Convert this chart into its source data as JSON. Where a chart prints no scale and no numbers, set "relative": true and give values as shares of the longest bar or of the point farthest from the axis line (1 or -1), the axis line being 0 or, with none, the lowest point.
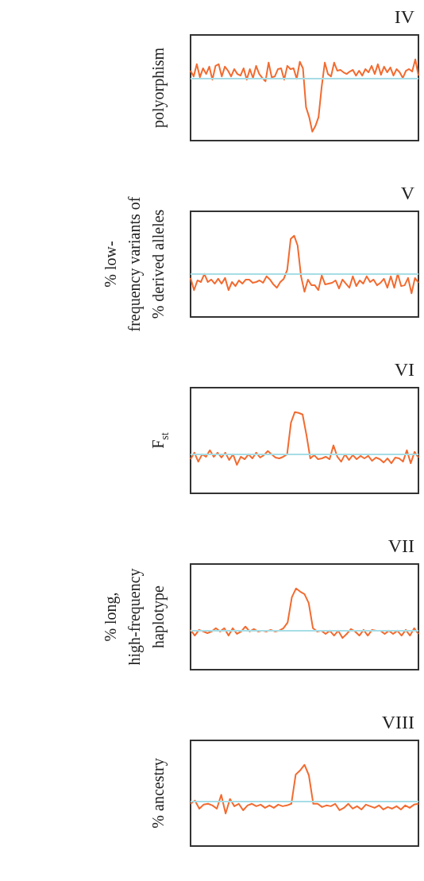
{
  "chart_data": [
    {
      "type": "line",
      "relative": true,
      "title": "IV",
      "ylabel": "polyorphism",
      "categories": [
        null,
        null,
        null,
        null,
        null,
        null,
        null,
        null,
        null,
        null,
        null,
        null,
        null,
        null,
        null,
        null,
        null,
        null,
        null,
        null,
        null,
        null,
        null,
        null,
        null,
        null,
        null,
        null,
        null,
        null,
        null,
        null,
        null,
        null,
        null,
        null,
        null,
        null,
        null,
        null,
        null,
        null,
        null,
        null,
        null,
        null,
        null,
        null,
        null,
        null,
        null,
        null,
        null,
        null,
        null,
        null,
        null,
        null,
        null,
        null,
        null,
        null,
        null,
        null,
        null,
        null,
        null,
        null,
        null,
        null,
        null,
        null,
        null,
        null
      ],
      "series": [
        {
          "color": "#f26b30",
          "values": [
            0.86,
            0.79,
            0.94,
            0.78,
            0.89,
            0.82,
            0.91,
            0.75,
            0.92,
            0.94,
            0.79,
            0.91,
            0.86,
            0.79,
            0.88,
            0.82,
            0.8,
            0.89,
            0.75,
            0.88,
            0.77,
            0.92,
            0.82,
            0.77,
            0.73,
            0.96,
            0.78,
            0.79,
            0.88,
            0.89,
            0.75,
            0.92,
            0.88,
            0.89,
            0.76,
            0.97,
            0.89,
            0.41,
            0.29,
            0.11,
            0.18,
            0.29,
            0.66,
            0.96,
            0.82,
            0.79,
            0.96,
            0.86,
            0.87,
            0.84,
            0.82,
            0.85,
            0.87,
            0.8,
            0.86,
            0.8,
            0.88,
            0.84,
            0.92,
            0.82,
            0.94,
            0.81,
            0.91,
            0.84,
            0.9,
            0.8,
            0.88,
            0.84,
            0.77,
            0.86,
            0.88,
            0.85,
            1.0,
            0.8
          ]
        }
      ],
      "ref_lines": [
        {
          "axis": "y",
          "value": 0.76,
          "color": "#a6dde6"
        }
      ]
    },
    {
      "type": "line",
      "relative": true,
      "title": "V",
      "ylabel": "% low-\nfrequency variants of\n% derived alleles",
      "categories": [
        null,
        null,
        null,
        null,
        null,
        null,
        null,
        null,
        null,
        null,
        null,
        null,
        null,
        null,
        null,
        null,
        null,
        null,
        null,
        null,
        null,
        null,
        null,
        null,
        null,
        null,
        null,
        null,
        null,
        null,
        null,
        null,
        null,
        null,
        null,
        null,
        null,
        null,
        null,
        null,
        null,
        null,
        null,
        null,
        null,
        null,
        null,
        null,
        null,
        null,
        null,
        null,
        null,
        null,
        null,
        null,
        null,
        null,
        null,
        null,
        null,
        null,
        null,
        null,
        null,
        null,
        null
      ],
      "series": [
        {
          "color": "#f26b30",
          "values": [
            0.48,
            0.33,
            0.45,
            0.43,
            0.53,
            0.43,
            0.46,
            0.41,
            0.47,
            0.41,
            0.48,
            0.33,
            0.43,
            0.38,
            0.45,
            0.41,
            0.46,
            0.46,
            0.42,
            0.43,
            0.45,
            0.42,
            0.5,
            0.46,
            0.4,
            0.36,
            0.43,
            0.47,
            0.58,
            0.96,
            1.0,
            0.88,
            0.5,
            0.31,
            0.46,
            0.39,
            0.39,
            0.33,
            0.51,
            0.4,
            0.41,
            0.42,
            0.45,
            0.35,
            0.46,
            0.41,
            0.36,
            0.5,
            0.38,
            0.45,
            0.41,
            0.5,
            0.43,
            0.46,
            0.39,
            0.42,
            0.47,
            0.36,
            0.5,
            0.36,
            0.53,
            0.38,
            0.39,
            0.48,
            0.29,
            0.48,
            0.42
          ]
        }
      ],
      "ref_lines": [
        {
          "axis": "y",
          "value": 0.53,
          "color": "#a6dde6"
        }
      ]
    },
    {
      "type": "line",
      "relative": true,
      "title": "VI",
      "ylabel": "F$_{st}$",
      "categories": [
        null,
        null,
        null,
        null,
        null,
        null,
        null,
        null,
        null,
        null,
        null,
        null,
        null,
        null,
        null,
        null,
        null,
        null,
        null,
        null,
        null,
        null,
        null,
        null,
        null,
        null,
        null,
        null,
        null,
        null,
        null,
        null,
        null,
        null,
        null,
        null,
        null,
        null,
        null,
        null,
        null,
        null,
        null,
        null,
        null,
        null,
        null,
        null,
        null,
        null,
        null,
        null,
        null,
        null,
        null,
        null,
        null,
        null,
        null,
        null
      ],
      "series": [
        {
          "color": "#f26b30",
          "values": [
            0.42,
            0.5,
            0.39,
            0.48,
            0.45,
            0.53,
            0.45,
            0.5,
            0.44,
            0.5,
            0.41,
            0.48,
            0.35,
            0.45,
            0.42,
            0.48,
            0.43,
            0.5,
            0.44,
            0.47,
            0.52,
            0.48,
            0.44,
            0.43,
            0.45,
            0.48,
            0.87,
            1.0,
            0.99,
            0.97,
            0.72,
            0.43,
            0.47,
            0.42,
            0.43,
            0.45,
            0.42,
            0.59,
            0.45,
            0.39,
            0.48,
            0.41,
            0.47,
            0.42,
            0.46,
            0.43,
            0.46,
            0.4,
            0.44,
            0.42,
            0.38,
            0.43,
            0.37,
            0.44,
            0.43,
            0.39,
            0.53,
            0.37,
            0.51,
            0.44
          ]
        }
      ],
      "ref_lines": [
        {
          "axis": "y",
          "value": 0.48,
          "color": "#a6dde6"
        }
      ]
    },
    {
      "type": "line",
      "relative": true,
      "title": "VII",
      "ylabel": "% long,\nhigh-frequency\nhaplotype",
      "categories": [
        null,
        null,
        null,
        null,
        null,
        null,
        null,
        null,
        null,
        null,
        null,
        null,
        null,
        null,
        null,
        null,
        null,
        null,
        null,
        null,
        null,
        null,
        null,
        null,
        null,
        null,
        null,
        null,
        null,
        null,
        null,
        null,
        null,
        null,
        null,
        null,
        null,
        null,
        null,
        null,
        null,
        null,
        null,
        null,
        null,
        null,
        null,
        null,
        null,
        null,
        null,
        null,
        null,
        null,
        null
      ],
      "series": [
        {
          "color": "#f26b30",
          "values": [
            0.49,
            0.42,
            0.49,
            0.47,
            0.45,
            0.47,
            0.51,
            0.47,
            0.51,
            0.42,
            0.51,
            0.44,
            0.47,
            0.53,
            0.47,
            0.5,
            0.47,
            0.48,
            0.47,
            0.49,
            0.47,
            0.48,
            0.51,
            0.58,
            0.89,
            1.0,
            0.96,
            0.93,
            0.82,
            0.51,
            0.47,
            0.48,
            0.44,
            0.48,
            0.42,
            0.48,
            0.39,
            0.44,
            0.5,
            0.47,
            0.42,
            0.49,
            0.42,
            0.49,
            0.48,
            0.48,
            0.44,
            0.48,
            0.44,
            0.48,
            0.42,
            0.49,
            0.42,
            0.51,
            0.44
          ]
        }
      ],
      "ref_lines": [
        {
          "axis": "y",
          "value": 0.48,
          "color": "#a6dde6"
        }
      ]
    },
    {
      "type": "line",
      "relative": true,
      "title": "VIII",
      "ylabel": "% ancestry",
      "categories": [
        null,
        null,
        null,
        null,
        null,
        null,
        null,
        null,
        null,
        null,
        null,
        null,
        null,
        null,
        null,
        null,
        null,
        null,
        null,
        null,
        null,
        null,
        null,
        null,
        null,
        null,
        null,
        null,
        null,
        null,
        null,
        null,
        null,
        null,
        null,
        null,
        null,
        null,
        null,
        null,
        null,
        null,
        null,
        null,
        null,
        null,
        null,
        null,
        null,
        null,
        null,
        null,
        null
      ],
      "series": [
        {
          "color": "#f26b30",
          "values": [
            0.52,
            0.56,
            0.46,
            0.51,
            0.52,
            0.5,
            0.46,
            0.63,
            0.4,
            0.58,
            0.49,
            0.52,
            0.44,
            0.5,
            0.52,
            0.49,
            0.51,
            0.47,
            0.5,
            0.47,
            0.51,
            0.49,
            0.5,
            0.52,
            0.88,
            0.93,
            1.0,
            0.87,
            0.52,
            0.52,
            0.48,
            0.5,
            0.49,
            0.52,
            0.44,
            0.47,
            0.52,
            0.46,
            0.49,
            0.45,
            0.51,
            0.49,
            0.47,
            0.5,
            0.45,
            0.48,
            0.46,
            0.49,
            0.45,
            0.5,
            0.47,
            0.51,
            0.52
          ]
        }
      ],
      "ref_lines": [
        {
          "axis": "y",
          "value": 0.55,
          "color": "#a6dde6"
        }
      ]
    }
  ]
}
